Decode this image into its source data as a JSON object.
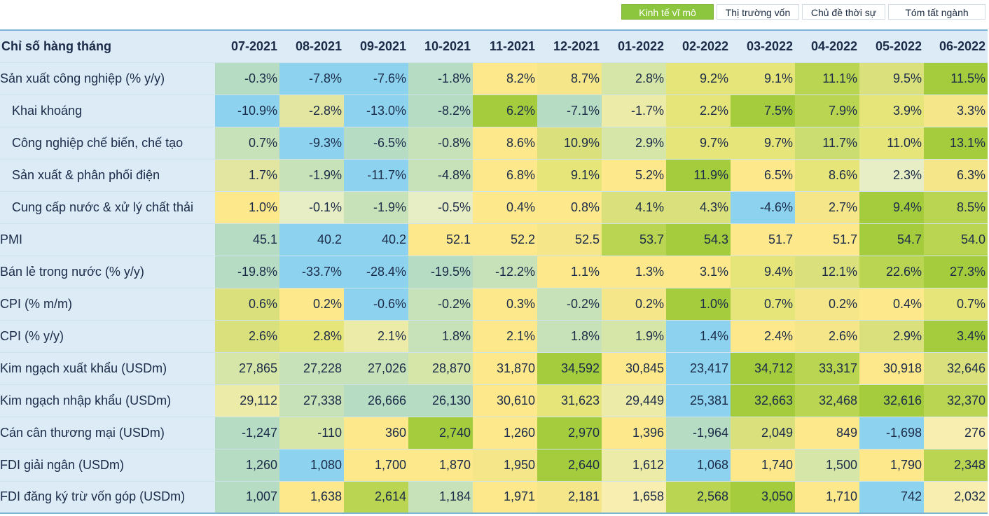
{
  "tabs": [
    {
      "label": "Kinh tế vĩ mô",
      "active": true
    },
    {
      "label": "Thị trường vốn",
      "active": false
    },
    {
      "label": "Chủ đề thời sự",
      "active": false
    },
    {
      "label": "Tóm tất ngành",
      "active": false
    }
  ],
  "table": {
    "header_label": "Chỉ số hàng tháng",
    "months": [
      "07-2021",
      "08-2021",
      "09-2021",
      "10-2021",
      "11-2021",
      "12-2021",
      "01-2022",
      "02-2022",
      "03-2022",
      "04-2022",
      "05-2022",
      "06-2022"
    ],
    "rows": [
      {
        "label": "Sản xuất công nghiệp (% y/y)",
        "sub": false,
        "values": [
          "-0.3%",
          "-7.8%",
          "-7.6%",
          "-1.8%",
          "8.2%",
          "8.7%",
          "2.8%",
          "9.2%",
          "9.1%",
          "11.1%",
          "9.5%",
          "11.5%"
        ],
        "colors": [
          "#b6dcc4",
          "#8dd3ef",
          "#8dd3ef",
          "#b6dcc4",
          "#fde98c",
          "#f5e68a",
          "#d5e6a8",
          "#e6e57a",
          "#e6e57a",
          "#b9d551",
          "#d9e07c",
          "#a4cc3d"
        ]
      },
      {
        "label": "Khai khoáng",
        "sub": true,
        "values": [
          "-10.9%",
          "-2.8%",
          "-13.0%",
          "-8.2%",
          "6.2%",
          "-7.1%",
          "-1.7%",
          "2.2%",
          "7.5%",
          "7.9%",
          "3.9%",
          "3.3%"
        ],
        "colors": [
          "#8dd3ef",
          "#e2e6a0",
          "#8dd3ef",
          "#b6dcc4",
          "#a4cc3d",
          "#b6dcc4",
          "#edeba8",
          "#e6e57a",
          "#a4cc3d",
          "#b9d551",
          "#e6e57a",
          "#f5e68a"
        ]
      },
      {
        "label": "Công nghiệp chế biến, chế tạo",
        "sub": true,
        "values": [
          "0.7%",
          "-9.3%",
          "-6.5%",
          "-0.8%",
          "8.6%",
          "10.9%",
          "2.9%",
          "9.7%",
          "9.7%",
          "11.7%",
          "11.0%",
          "13.1%"
        ],
        "colors": [
          "#c7e2b8",
          "#8dd3ef",
          "#b6dcc4",
          "#c7e2b8",
          "#fde98c",
          "#d9e07c",
          "#d5e6a8",
          "#e6e57a",
          "#e6e57a",
          "#cbdc70",
          "#e6e57a",
          "#a4cc3d"
        ]
      },
      {
        "label": "Sản xuất & phân phối điện",
        "sub": true,
        "values": [
          "1.7%",
          "-1.9%",
          "-11.7%",
          "-4.8%",
          "6.8%",
          "9.1%",
          "5.2%",
          "11.9%",
          "6.5%",
          "8.6%",
          "2.3%",
          "6.3%"
        ],
        "colors": [
          "#e2e6a0",
          "#c7e2b8",
          "#8dd3ef",
          "#c7e2b8",
          "#fde98c",
          "#e6e57a",
          "#fde98c",
          "#a4cc3d",
          "#fde98c",
          "#e6e57a",
          "#e7edc4",
          "#f5e68a"
        ]
      },
      {
        "label": "Cung cấp nước & xử lý chất thải",
        "sub": true,
        "values": [
          "1.0%",
          "-0.1%",
          "-1.9%",
          "-0.5%",
          "0.4%",
          "0.8%",
          "4.1%",
          "4.3%",
          "-4.6%",
          "2.7%",
          "9.4%",
          "8.5%"
        ],
        "colors": [
          "#fde98c",
          "#e7edc4",
          "#c7e2b8",
          "#e7edc4",
          "#fde98c",
          "#fde98c",
          "#d9e07c",
          "#d9e07c",
          "#8dd3ef",
          "#f5e68a",
          "#a4cc3d",
          "#b9d551"
        ]
      },
      {
        "label": "PMI",
        "sub": false,
        "values": [
          "45.1",
          "40.2",
          "40.2",
          "52.1",
          "52.2",
          "52.5",
          "53.7",
          "54.3",
          "51.7",
          "51.7",
          "54.7",
          "54.0"
        ],
        "colors": [
          "#b6dcc4",
          "#8dd3ef",
          "#8dd3ef",
          "#fde98c",
          "#fde98c",
          "#f5e68a",
          "#b9d551",
          "#a4cc3d",
          "#fde98c",
          "#fde98c",
          "#a4cc3d",
          "#b9d551"
        ]
      },
      {
        "label": "Bán lẻ trong nước (% y/y)",
        "sub": false,
        "values": [
          "-19.8%",
          "-33.7%",
          "-28.4%",
          "-19.5%",
          "-12.2%",
          "1.1%",
          "1.3%",
          "3.1%",
          "9.4%",
          "12.1%",
          "22.6%",
          "27.3%"
        ],
        "colors": [
          "#b6dcc4",
          "#8dd3ef",
          "#8dd3ef",
          "#b6dcc4",
          "#c7e2b8",
          "#fde98c",
          "#fde98c",
          "#fde98c",
          "#e6e57a",
          "#d9e07c",
          "#b9d551",
          "#a4cc3d"
        ]
      },
      {
        "label": "CPI (% m/m)",
        "sub": false,
        "values": [
          "0.6%",
          "0.2%",
          "-0.6%",
          "-0.2%",
          "0.3%",
          "-0.2%",
          "0.2%",
          "1.0%",
          "0.7%",
          "0.2%",
          "0.4%",
          "0.7%"
        ],
        "colors": [
          "#d9e07c",
          "#fde98c",
          "#8dd3ef",
          "#c7e2b8",
          "#fde98c",
          "#c7e2b8",
          "#f5e68a",
          "#a4cc3d",
          "#e6e57a",
          "#f5e68a",
          "#fde98c",
          "#e6e57a"
        ]
      },
      {
        "label": "CPI (% y/y)",
        "sub": false,
        "values": [
          "2.6%",
          "2.8%",
          "2.1%",
          "1.8%",
          "2.1%",
          "1.8%",
          "1.9%",
          "1.4%",
          "2.4%",
          "2.6%",
          "2.9%",
          "3.4%"
        ],
        "colors": [
          "#d9e07c",
          "#e6e57a",
          "#edeba8",
          "#c7e2b8",
          "#fde98c",
          "#c7e2b8",
          "#d5e6a8",
          "#8dd3ef",
          "#fde98c",
          "#f5e68a",
          "#d9e07c",
          "#a4cc3d"
        ]
      },
      {
        "label": "Kim ngạch xuất khẩu (USDm)",
        "sub": false,
        "values": [
          "27,865",
          "27,228",
          "27,026",
          "28,870",
          "31,870",
          "34,592",
          "30,845",
          "23,417",
          "34,712",
          "33,317",
          "30,918",
          "32,646"
        ],
        "colors": [
          "#d5e6a8",
          "#c7e2b8",
          "#c7e2b8",
          "#d5e6a8",
          "#fde98c",
          "#a4cc3d",
          "#fde98c",
          "#8dd3ef",
          "#a4cc3d",
          "#b9d551",
          "#fde98c",
          "#d9e07c"
        ]
      },
      {
        "label": "Kim ngạch nhập khẩu (USDm)",
        "sub": false,
        "values": [
          "29,112",
          "27,338",
          "26,666",
          "26,130",
          "30,610",
          "31,623",
          "29,449",
          "25,381",
          "32,663",
          "32,468",
          "32,616",
          "32,370"
        ],
        "colors": [
          "#edeba8",
          "#c7e2b8",
          "#b6dcc4",
          "#b6dcc4",
          "#fde98c",
          "#e6e57a",
          "#edeba8",
          "#8dd3ef",
          "#a4cc3d",
          "#b9d551",
          "#a4cc3d",
          "#b9d551"
        ]
      },
      {
        "label": "Cán cân thương mại (USDm)",
        "sub": false,
        "values": [
          "-1,247",
          "-110",
          "360",
          "2,740",
          "1,260",
          "2,970",
          "1,396",
          "-1,964",
          "2,049",
          "849",
          "-1,698",
          "276"
        ],
        "colors": [
          "#b6dcc4",
          "#d5e6a8",
          "#fde98c",
          "#a4cc3d",
          "#fde98c",
          "#a4cc3d",
          "#fde98c",
          "#b6dcc4",
          "#d9e07c",
          "#fde98c",
          "#8dd3ef",
          "#f7eeb0"
        ]
      },
      {
        "label": "FDI giải ngân (USDm)",
        "sub": false,
        "values": [
          "1,260",
          "1,080",
          "1,700",
          "1,870",
          "1,950",
          "2,640",
          "1,612",
          "1,068",
          "1,740",
          "1,500",
          "1,790",
          "2,348"
        ],
        "colors": [
          "#b6dcc4",
          "#8dd3ef",
          "#fde98c",
          "#fde98c",
          "#f5e68a",
          "#a4cc3d",
          "#edeba8",
          "#8dd3ef",
          "#fde98c",
          "#d5e6a8",
          "#fde98c",
          "#b9d551"
        ]
      },
      {
        "label": "FDI đăng ký trừ vốn góp (USDm)",
        "sub": false,
        "values": [
          "1,007",
          "1,638",
          "2,614",
          "1,184",
          "1,971",
          "2,181",
          "1,658",
          "2,568",
          "3,050",
          "1,710",
          "742",
          "2,032"
        ],
        "colors": [
          "#b6dcc4",
          "#fde98c",
          "#b9d551",
          "#c7e2b8",
          "#fde98c",
          "#f5e68a",
          "#f7eeb0",
          "#b9d551",
          "#a4cc3d",
          "#fde98c",
          "#8dd3ef",
          "#f7eeb0"
        ]
      }
    ]
  }
}
